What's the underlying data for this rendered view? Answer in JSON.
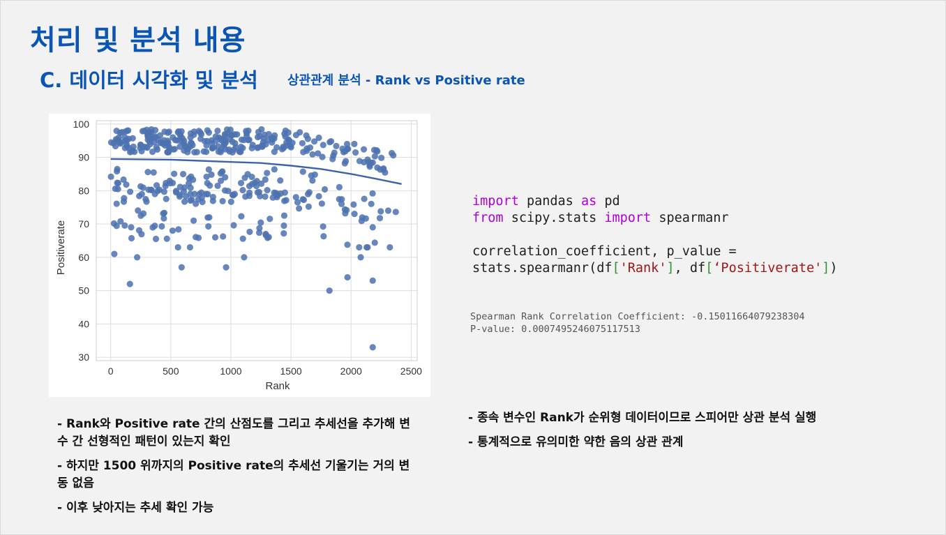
{
  "page": {
    "title": "처리 및 분석 내용",
    "section": "C. 데이터 시각화 및 분석",
    "section_sub": "상관관계 분석 - Rank vs Positive rate"
  },
  "code": {
    "line1": [
      "import",
      " pandas ",
      "as",
      " pd"
    ],
    "line2": [
      "from",
      " scipy.stats ",
      "import",
      " spearmanr"
    ],
    "line3": "correlation_coefficient, p_value =",
    "line4_parts": [
      "stats.spearmanr(df",
      "[",
      "'Rank'",
      "]",
      ", df",
      "[",
      "‘Positiverate'",
      "]",
      ")"
    ]
  },
  "output": {
    "line1": "Spearman Rank Correlation Coefficient: -0.15011664079238304",
    "line2": "P-value: 0.0007495246075117513"
  },
  "notes_left": [
    "- Rank와 Positive rate 간의 산점도를 그리고 추세선을 추가해 변수 간 선형적인 패턴이 있는지 확인",
    "- 하지만 1500 위까지의 Positive rate의 추세선 기울기는 거의 변동 없음",
    "- 이후 낮아지는 추세 확인 가능"
  ],
  "notes_right": [
    "- 종속 변수인 Rank가 순위형 데이터이므로 스피어만 상관 분석 실행",
    "- 통계적으로 유의미한 약한 음의 상관 관계"
  ],
  "colors": {
    "title": "#0b55b5",
    "point": "#4c72b0",
    "keyword": "#af00db",
    "string": "#a31515"
  },
  "chart_data": {
    "type": "scatter",
    "xlabel": "Rank",
    "ylabel": "Positiverate",
    "xlim": [
      -120,
      2550
    ],
    "ylim": [
      29,
      101
    ],
    "xticks": [
      0,
      500,
      1000,
      1500,
      2000,
      2500
    ],
    "yticks": [
      30,
      40,
      50,
      60,
      70,
      80,
      90,
      100
    ],
    "grid": true,
    "trend": [
      [
        0,
        89.5
      ],
      [
        500,
        89.3
      ],
      [
        1000,
        88.6
      ],
      [
        1250,
        88.3
      ],
      [
        1500,
        87.5
      ],
      [
        1750,
        86.5
      ],
      [
        2000,
        85.0
      ],
      [
        2200,
        83.6
      ],
      [
        2420,
        82.0
      ]
    ],
    "outliers": [
      [
        30,
        61
      ],
      [
        160,
        52
      ],
      [
        220,
        60
      ],
      [
        590,
        57
      ],
      [
        560,
        63
      ],
      [
        660,
        63
      ],
      [
        960,
        57
      ],
      [
        1110,
        60
      ],
      [
        1820,
        50
      ],
      [
        1970,
        54
      ],
      [
        2180,
        53
      ],
      [
        2180,
        33
      ],
      [
        2080,
        60
      ],
      [
        2130,
        63
      ],
      [
        170,
        69
      ],
      [
        515,
        68
      ],
      [
        690,
        71
      ],
      [
        870,
        66
      ],
      [
        1290,
        67
      ],
      [
        2180,
        69
      ]
    ],
    "dense_seed": 7
  }
}
